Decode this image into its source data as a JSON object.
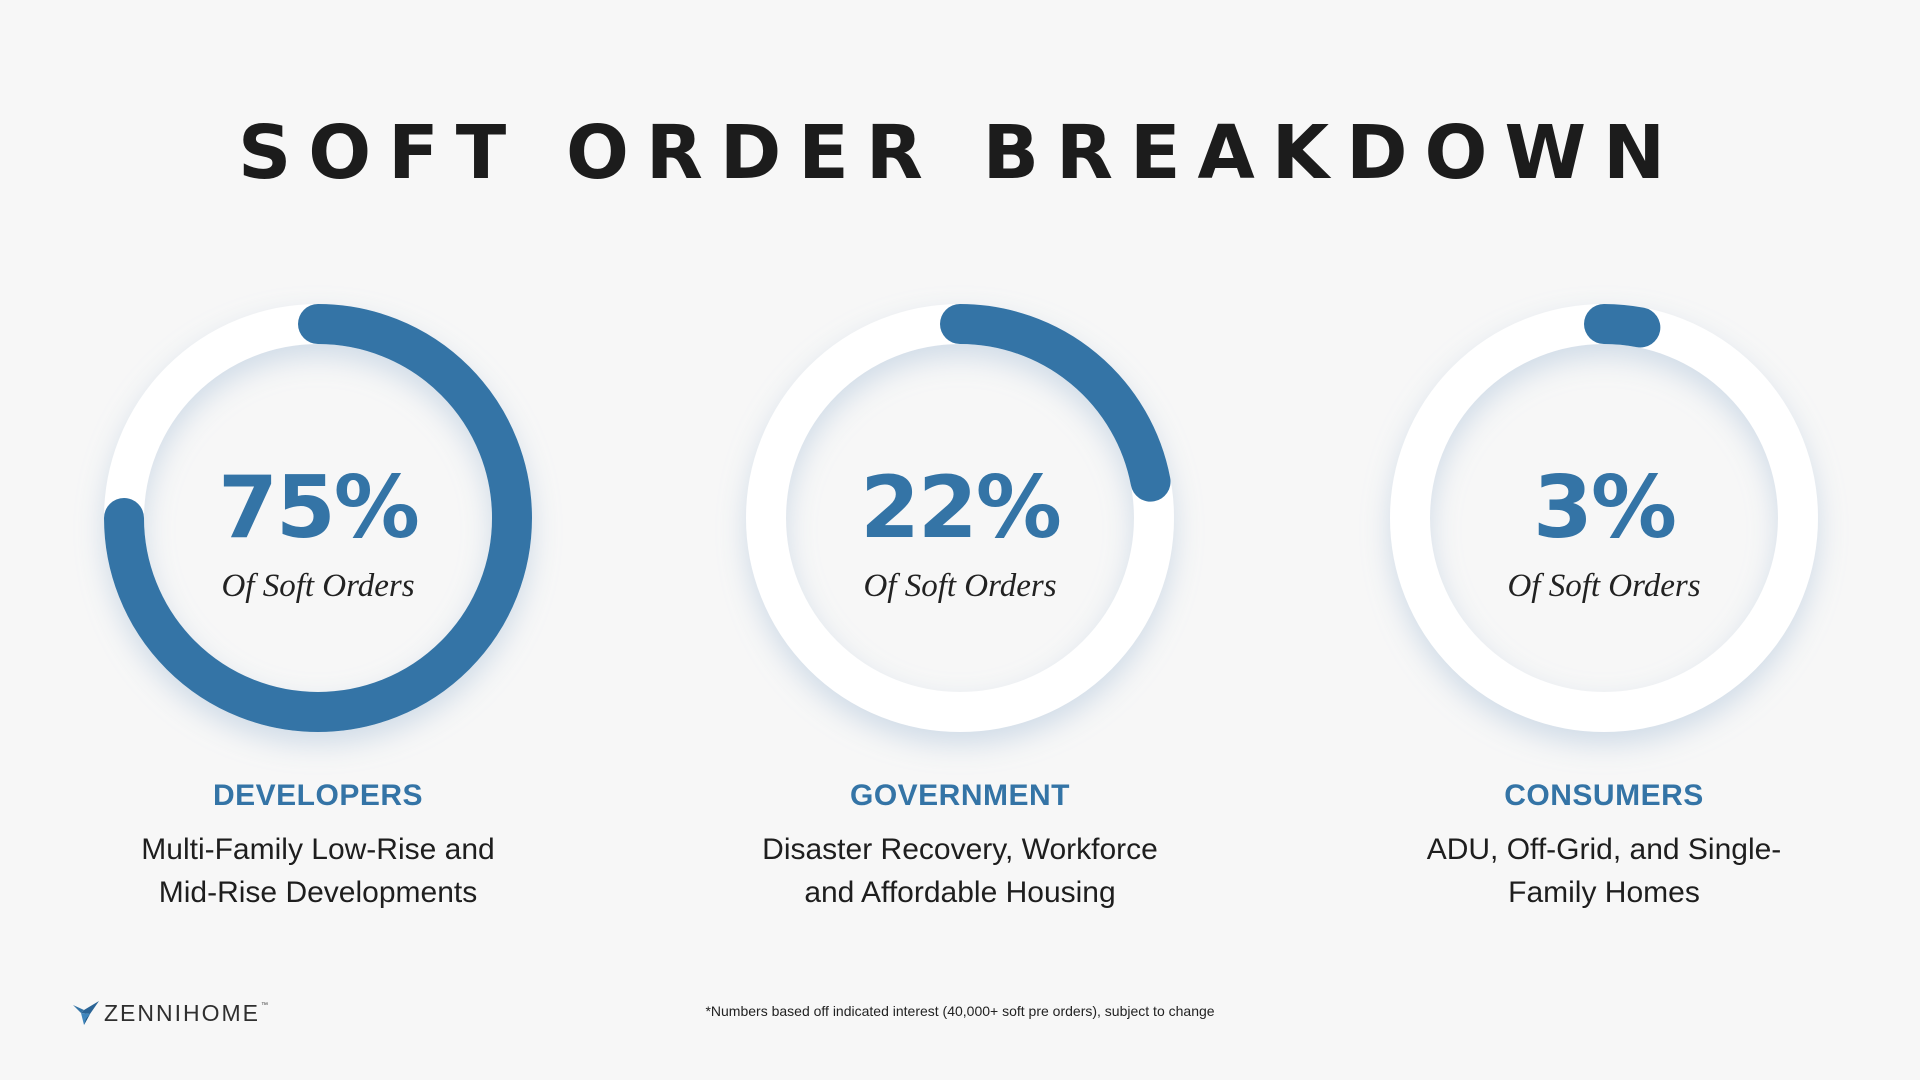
{
  "title": "SOFT ORDER BREAKDOWN",
  "colors": {
    "accent": "#3474a6",
    "track": "#ffffff",
    "background": "#f7f7f7",
    "title": "#1c1c1c"
  },
  "chart_data": {
    "type": "pie",
    "variant": "donut-progress-rings",
    "categories": [
      "DEVELOPERS",
      "GOVERNMENT",
      "CONSUMERS"
    ],
    "values": [
      75,
      22,
      3
    ],
    "unit": "%",
    "items": [
      {
        "percent": 75,
        "percent_label": "75%",
        "sub_label": "Of Soft Orders",
        "category": "DEVELOPERS",
        "description_lines": [
          "Multi-Family Low-Rise and",
          "Mid-Rise Developments"
        ]
      },
      {
        "percent": 22,
        "percent_label": "22%",
        "sub_label": "Of Soft Orders",
        "category": "GOVERNMENT",
        "description_lines": [
          "Disaster Recovery, Workforce",
          "and Affordable Housing"
        ]
      },
      {
        "percent": 3,
        "percent_label": "3%",
        "sub_label": "Of Soft Orders",
        "category": "CONSUMERS",
        "description_lines": [
          "ADU, Off-Grid, and Single-",
          "Family Homes"
        ]
      }
    ]
  },
  "logo": {
    "wordmark": "ZENNIHOME",
    "trademark": "™",
    "icon": "bird-logo-icon"
  },
  "footnote": "*Numbers based off indicated interest (40,000+ soft pre orders), subject to change"
}
